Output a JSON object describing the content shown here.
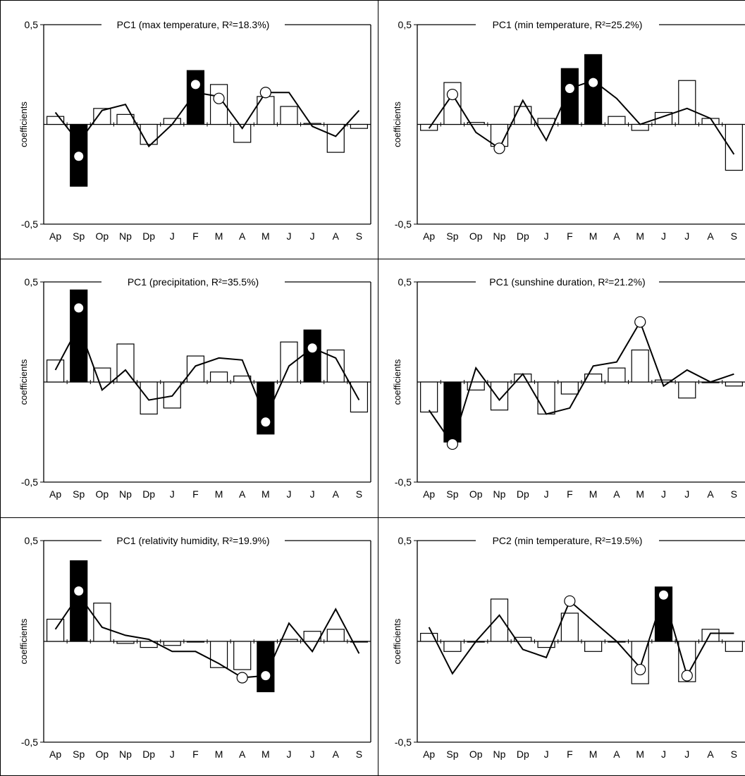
{
  "chart_data": [
    {
      "type": "bar",
      "title": "PC1 (max temperature, R²=18.3%)",
      "ylabel": "coefficients",
      "ylim": [
        -0.5,
        0.5
      ],
      "ytick_labels": [
        "0,5",
        "-0,5"
      ],
      "categories": [
        "Ap",
        "Sp",
        "Op",
        "Np",
        "Dp",
        "J",
        "F",
        "M",
        "A",
        "M",
        "J",
        "J",
        "A",
        "S"
      ],
      "series": [
        {
          "values": [
            0.04,
            -0.31,
            0.08,
            0.05,
            -0.1,
            0.03,
            0.27,
            0.2,
            -0.09,
            0.14,
            0.09,
            0.005,
            -0.14,
            -0.02
          ],
          "significant": [
            false,
            true,
            false,
            false,
            false,
            false,
            true,
            false,
            false,
            false,
            false,
            false,
            false,
            false
          ]
        },
        {
          "values": [
            0.06,
            -0.09,
            0.07,
            0.1,
            -0.11,
            0.0,
            0.16,
            0.14,
            -0.02,
            0.16,
            0.16,
            -0.01,
            -0.06,
            0.07
          ]
        }
      ],
      "markers": [
        {
          "index": 1,
          "value": -0.16,
          "fill": "white"
        },
        {
          "index": 6,
          "value": 0.2,
          "fill": "white"
        },
        {
          "index": 7,
          "value": 0.13,
          "fill": "open"
        },
        {
          "index": 9,
          "value": 0.16,
          "fill": "open"
        }
      ]
    },
    {
      "type": "bar",
      "title": "PC1 (min temperature, R²=25.2%)",
      "ylabel": "coefficients",
      "ylim": [
        -0.5,
        0.5
      ],
      "ytick_labels": [
        "0,5",
        "-0,5"
      ],
      "categories": [
        "Ap",
        "Sp",
        "Op",
        "Np",
        "Dp",
        "J",
        "F",
        "M",
        "A",
        "M",
        "J",
        "J",
        "A",
        "S"
      ],
      "series": [
        {
          "values": [
            -0.03,
            0.21,
            0.01,
            -0.11,
            0.09,
            0.03,
            0.28,
            0.35,
            0.04,
            -0.03,
            0.06,
            0.22,
            0.03,
            -0.23
          ],
          "significant": [
            false,
            false,
            false,
            false,
            false,
            false,
            true,
            true,
            false,
            false,
            false,
            false,
            false,
            false
          ]
        },
        {
          "values": [
            -0.02,
            0.15,
            -0.04,
            -0.12,
            0.12,
            -0.08,
            0.18,
            0.22,
            0.13,
            0.0,
            0.04,
            0.08,
            0.03,
            -0.15
          ]
        }
      ],
      "markers": [
        {
          "index": 1,
          "value": 0.15,
          "fill": "open"
        },
        {
          "index": 3,
          "value": -0.12,
          "fill": "open"
        },
        {
          "index": 6,
          "value": 0.18,
          "fill": "white"
        },
        {
          "index": 7,
          "value": 0.21,
          "fill": "white"
        }
      ]
    },
    {
      "type": "bar",
      "title": "PC1 (precipitation, R²=35.5%)",
      "ylabel": "coefficients",
      "ylim": [
        -0.5,
        0.5
      ],
      "ytick_labels": [
        "0,5",
        "-0,5"
      ],
      "categories": [
        "Ap",
        "Sp",
        "Op",
        "Np",
        "Dp",
        "J",
        "F",
        "M",
        "A",
        "M",
        "J",
        "J",
        "A",
        "S"
      ],
      "series": [
        {
          "values": [
            0.11,
            0.46,
            0.07,
            0.19,
            -0.16,
            -0.13,
            0.13,
            0.05,
            0.03,
            -0.26,
            0.2,
            0.26,
            0.16,
            -0.15
          ],
          "significant": [
            false,
            true,
            false,
            false,
            false,
            false,
            false,
            false,
            false,
            true,
            false,
            true,
            false,
            false
          ]
        },
        {
          "values": [
            0.06,
            0.28,
            -0.04,
            0.06,
            -0.09,
            -0.07,
            0.08,
            0.12,
            0.11,
            -0.18,
            0.08,
            0.17,
            0.12,
            -0.09
          ]
        }
      ],
      "markers": [
        {
          "index": 1,
          "value": 0.37,
          "fill": "white"
        },
        {
          "index": 9,
          "value": -0.2,
          "fill": "white"
        },
        {
          "index": 11,
          "value": 0.17,
          "fill": "white"
        }
      ]
    },
    {
      "type": "bar",
      "title": "PC1 (sunshine duration, R²=21.2%)",
      "ylabel": "coefficients",
      "ylim": [
        -0.5,
        0.5
      ],
      "ytick_labels": [
        "0,5",
        "-0,5"
      ],
      "categories": [
        "Ap",
        "Sp",
        "Op",
        "Np",
        "Dp",
        "J",
        "F",
        "M",
        "A",
        "M",
        "J",
        "J",
        "A",
        "S"
      ],
      "series": [
        {
          "values": [
            -0.15,
            -0.3,
            -0.04,
            -0.14,
            0.04,
            -0.16,
            -0.06,
            0.04,
            0.07,
            0.16,
            0.01,
            -0.08,
            0.0,
            -0.02
          ],
          "significant": [
            false,
            true,
            false,
            false,
            false,
            false,
            false,
            false,
            false,
            false,
            false,
            false,
            false,
            false
          ]
        },
        {
          "values": [
            -0.14,
            -0.31,
            0.07,
            -0.09,
            0.04,
            -0.16,
            -0.13,
            0.08,
            0.1,
            0.3,
            -0.02,
            0.06,
            0.0,
            0.04
          ]
        }
      ],
      "markers": [
        {
          "index": 1,
          "value": -0.31,
          "fill": "open"
        },
        {
          "index": 9,
          "value": 0.3,
          "fill": "open"
        }
      ]
    },
    {
      "type": "bar",
      "title": "PC1 (relativity humidity, R²=19.9%)",
      "ylabel": "coefficients",
      "ylim": [
        -0.5,
        0.5
      ],
      "ytick_labels": [
        "0,5",
        "-0,5"
      ],
      "categories": [
        "Ap",
        "Sp",
        "Op",
        "Np",
        "Dp",
        "J",
        "F",
        "M",
        "A",
        "M",
        "J",
        "J",
        "A",
        "S"
      ],
      "series": [
        {
          "values": [
            0.11,
            0.4,
            0.19,
            -0.01,
            -0.03,
            -0.02,
            0.0,
            -0.13,
            -0.14,
            -0.25,
            0.01,
            0.05,
            0.06,
            0.0
          ],
          "significant": [
            false,
            true,
            false,
            false,
            false,
            false,
            false,
            false,
            false,
            true,
            false,
            false,
            false,
            false
          ]
        },
        {
          "values": [
            0.06,
            0.23,
            0.07,
            0.03,
            0.01,
            -0.05,
            -0.05,
            -0.11,
            -0.18,
            -0.17,
            0.09,
            -0.05,
            0.16,
            -0.06
          ]
        }
      ],
      "markers": [
        {
          "index": 1,
          "value": 0.25,
          "fill": "white"
        },
        {
          "index": 8,
          "value": -0.18,
          "fill": "open"
        },
        {
          "index": 9,
          "value": -0.17,
          "fill": "white"
        }
      ]
    },
    {
      "type": "bar",
      "title": "PC2 (min temperature, R²=19.5%)",
      "ylabel": "coefficients",
      "ylim": [
        -0.5,
        0.5
      ],
      "ytick_labels": [
        "0,5",
        "-0,5"
      ],
      "categories": [
        "Ap",
        "Sp",
        "Op",
        "Np",
        "Dp",
        "J",
        "F",
        "M",
        "A",
        "M",
        "J",
        "J",
        "A",
        "S"
      ],
      "series": [
        {
          "values": [
            0.04,
            -0.05,
            0.0,
            0.21,
            0.02,
            -0.03,
            0.14,
            -0.05,
            0.0,
            -0.21,
            0.27,
            -0.2,
            0.06,
            -0.05
          ],
          "significant": [
            false,
            false,
            false,
            false,
            false,
            false,
            false,
            false,
            false,
            false,
            true,
            false,
            false,
            false
          ]
        },
        {
          "values": [
            0.07,
            -0.16,
            0.0,
            0.13,
            -0.04,
            -0.08,
            0.2,
            0.1,
            0.0,
            -0.13,
            0.23,
            -0.17,
            0.04,
            0.04
          ]
        }
      ],
      "markers": [
        {
          "index": 6,
          "value": 0.2,
          "fill": "open"
        },
        {
          "index": 9,
          "value": -0.14,
          "fill": "open"
        },
        {
          "index": 10,
          "value": 0.23,
          "fill": "white"
        },
        {
          "index": 11,
          "value": -0.17,
          "fill": "open"
        }
      ]
    }
  ]
}
